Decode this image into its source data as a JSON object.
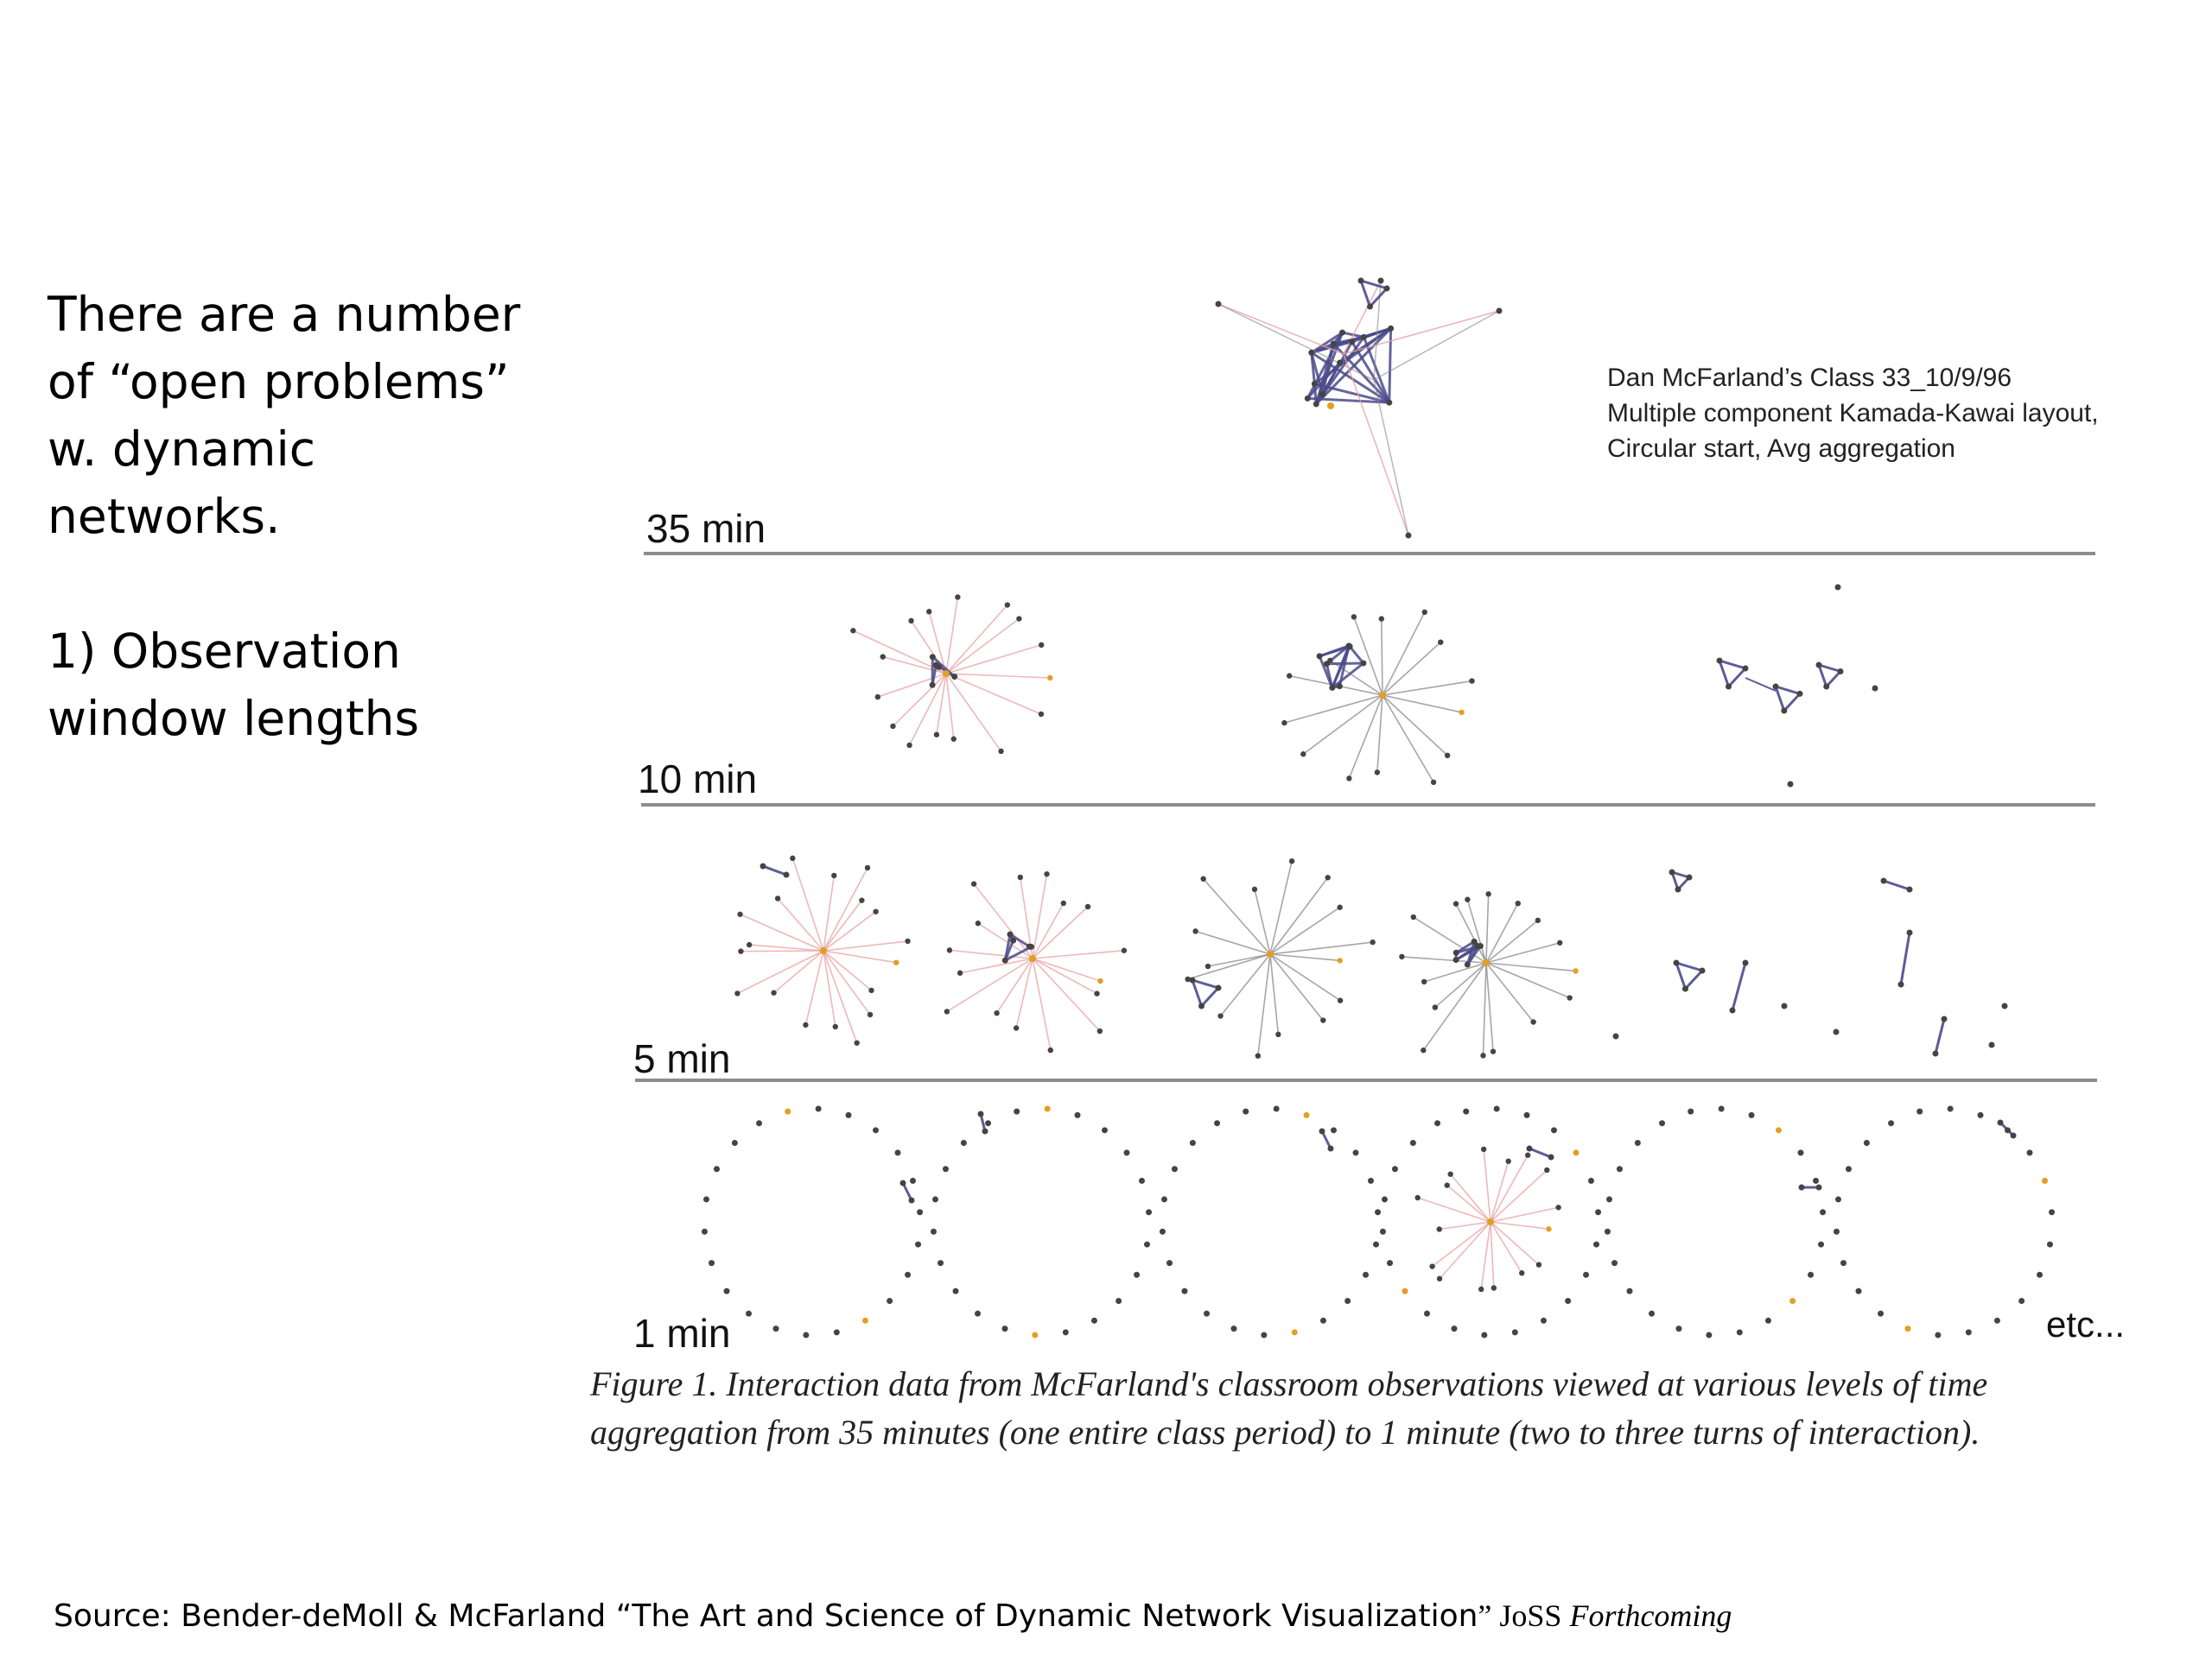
{
  "slide": {
    "intro_lines": [
      "There are a number",
      "of “open problems”",
      "w. dynamic",
      "networks."
    ],
    "point_lines": [
      "1) Observation",
      "window lengths"
    ]
  },
  "figure": {
    "note_lines": [
      "Dan McFarland’s Class 33_10/9/96",
      "Multiple component Kamada-Kawai layout,",
      "Circular start, Avg aggregation"
    ],
    "rows": [
      {
        "label": "35 min"
      },
      {
        "label": "10 min"
      },
      {
        "label": "5 min"
      },
      {
        "label": "1 min"
      }
    ],
    "etc": "etc...",
    "colors": {
      "node": "#444444",
      "node_highlight": "#e0a020",
      "edge_strong": "#4a4a8c",
      "edge_gray": "#888888",
      "edge_pink": "#e8a0a0",
      "rule": "#8c8c8c"
    }
  },
  "caption": {
    "line1": "Figure 1. Interaction data from McFarland's classroom observations viewed at various levels of time",
    "line2": "aggregation from 35 minutes (one entire class period) to 1 minute (two to three turns of interaction)."
  },
  "source": {
    "prefix": "Source: Bender-deMoll & McFarland “The Art and Science of Dynamic Network Visualization",
    "quote_close": "”",
    "journal": " JoSS ",
    "status": "Forthcoming"
  }
}
